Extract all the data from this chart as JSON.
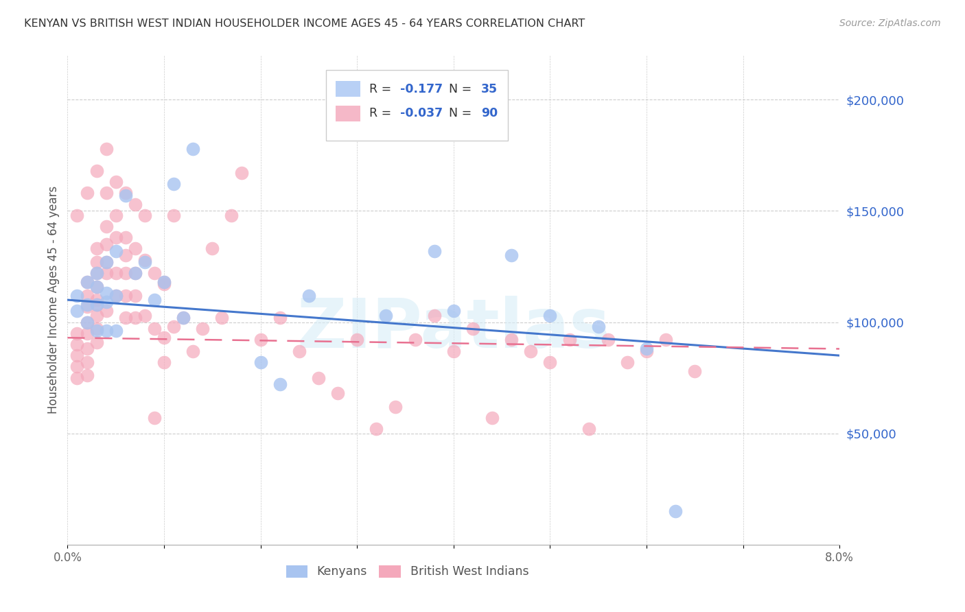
{
  "title": "KENYAN VS BRITISH WEST INDIAN HOUSEHOLDER INCOME AGES 45 - 64 YEARS CORRELATION CHART",
  "source": "Source: ZipAtlas.com",
  "ylabel": "Householder Income Ages 45 - 64 years",
  "x_min": 0.0,
  "x_max": 0.08,
  "y_min": 0,
  "y_max": 220000,
  "ytick_values": [
    50000,
    100000,
    150000,
    200000
  ],
  "ytick_labels": [
    "$50,000",
    "$100,000",
    "$150,000",
    "$200,000"
  ],
  "xtick_values": [
    0.0,
    0.01,
    0.02,
    0.03,
    0.04,
    0.05,
    0.06,
    0.07,
    0.08
  ],
  "xtick_labels": [
    "0.0%",
    "",
    "",
    "",
    "",
    "",
    "",
    "",
    "8.0%"
  ],
  "blue_color": "#a8c4f0",
  "pink_color": "#f4a8bb",
  "trend_blue": "#4477cc",
  "trend_pink": "#e87090",
  "legend_r_blue": "-0.177",
  "legend_n_blue": "35",
  "legend_r_pink": "-0.037",
  "legend_n_pink": "90",
  "watermark": "ZIPatlas",
  "kenyan_x": [
    0.001,
    0.001,
    0.002,
    0.002,
    0.002,
    0.003,
    0.003,
    0.003,
    0.003,
    0.004,
    0.004,
    0.004,
    0.004,
    0.005,
    0.005,
    0.005,
    0.006,
    0.007,
    0.008,
    0.009,
    0.01,
    0.011,
    0.012,
    0.013,
    0.02,
    0.022,
    0.025,
    0.033,
    0.038,
    0.04,
    0.046,
    0.05,
    0.055,
    0.06,
    0.063
  ],
  "kenyan_y": [
    112000,
    105000,
    118000,
    108000,
    100000,
    122000,
    116000,
    108000,
    96000,
    127000,
    113000,
    109000,
    96000,
    132000,
    112000,
    96000,
    157000,
    122000,
    127000,
    110000,
    118000,
    162000,
    102000,
    178000,
    82000,
    72000,
    112000,
    103000,
    132000,
    105000,
    130000,
    103000,
    98000,
    88000,
    15000
  ],
  "bwi_x": [
    0.001,
    0.001,
    0.001,
    0.001,
    0.001,
    0.002,
    0.002,
    0.002,
    0.002,
    0.002,
    0.002,
    0.002,
    0.002,
    0.003,
    0.003,
    0.003,
    0.003,
    0.003,
    0.003,
    0.003,
    0.003,
    0.004,
    0.004,
    0.004,
    0.004,
    0.004,
    0.005,
    0.005,
    0.005,
    0.005,
    0.006,
    0.006,
    0.006,
    0.006,
    0.006,
    0.007,
    0.007,
    0.007,
    0.007,
    0.008,
    0.008,
    0.009,
    0.009,
    0.01,
    0.01,
    0.01,
    0.011,
    0.012,
    0.013,
    0.014,
    0.015,
    0.016,
    0.017,
    0.018,
    0.02,
    0.022,
    0.024,
    0.026,
    0.028,
    0.03,
    0.032,
    0.034,
    0.036,
    0.038,
    0.04,
    0.042,
    0.044,
    0.046,
    0.048,
    0.05,
    0.052,
    0.054,
    0.056,
    0.058,
    0.06,
    0.062,
    0.065,
    0.001,
    0.002,
    0.003,
    0.003,
    0.004,
    0.004,
    0.005,
    0.006,
    0.007,
    0.008,
    0.009,
    0.01,
    0.011
  ],
  "bwi_y": [
    95000,
    90000,
    85000,
    80000,
    75000,
    118000,
    112000,
    107000,
    100000,
    95000,
    88000,
    82000,
    76000,
    133000,
    127000,
    122000,
    116000,
    110000,
    103000,
    97000,
    91000,
    143000,
    135000,
    127000,
    122000,
    105000,
    148000,
    138000,
    122000,
    112000,
    138000,
    130000,
    122000,
    112000,
    102000,
    133000,
    122000,
    112000,
    102000,
    128000,
    103000,
    122000,
    97000,
    117000,
    93000,
    82000,
    148000,
    102000,
    87000,
    97000,
    133000,
    102000,
    148000,
    167000,
    92000,
    102000,
    87000,
    75000,
    68000,
    92000,
    52000,
    62000,
    92000,
    103000,
    87000,
    97000,
    57000,
    92000,
    87000,
    82000,
    92000,
    52000,
    92000,
    82000,
    87000,
    92000,
    78000,
    148000,
    158000,
    168000,
    108000,
    178000,
    158000,
    163000,
    158000,
    153000,
    148000,
    57000,
    118000,
    98000
  ]
}
